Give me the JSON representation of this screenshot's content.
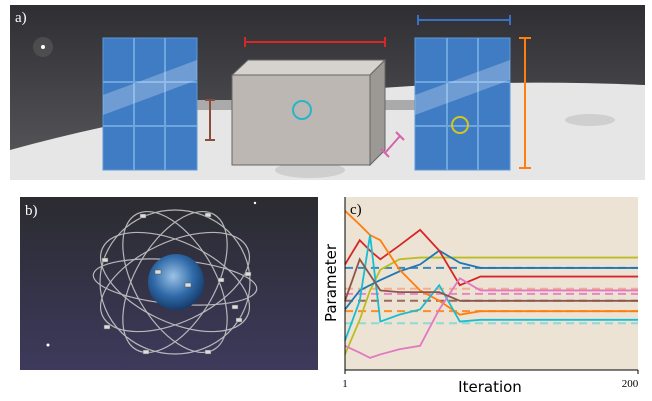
{
  "panel_labels": [
    "a)",
    "b)"
  ],
  "chart_data": {
    "type": "line",
    "panel_label": "c)",
    "xlabel": "Iteration",
    "ylabel": "Parameter",
    "xlim": [
      1,
      200
    ],
    "xticks": [
      1,
      200
    ],
    "ylim": [
      0,
      1
    ],
    "x": [
      1,
      11,
      18,
      25,
      38,
      52,
      65,
      79,
      93,
      200
    ],
    "series": [
      {
        "color": "#bcbd22",
        "values": [
          0.09,
          0.29,
          0.46,
          0.58,
          0.64,
          0.65,
          0.65,
          0.65,
          0.65,
          0.65
        ]
      },
      {
        "color": "#1f77b4",
        "values": [
          0.35,
          0.46,
          0.49,
          0.52,
          0.57,
          0.61,
          0.69,
          0.62,
          0.59,
          0.59
        ]
      },
      {
        "color": "#d62728",
        "values": [
          0.61,
          0.75,
          0.69,
          0.64,
          0.72,
          0.81,
          0.69,
          0.49,
          0.54,
          0.54
        ]
      },
      {
        "color": "#ff7f0e",
        "values": [
          0.92,
          0.84,
          0.78,
          0.75,
          0.58,
          0.46,
          0.4,
          0.32,
          0.34,
          0.34
        ]
      },
      {
        "color": "#17becf",
        "values": [
          0.17,
          0.4,
          0.78,
          0.28,
          0.32,
          0.35,
          0.49,
          0.28,
          0.29,
          0.29
        ]
      },
      {
        "color": "#e377c2",
        "values": [
          0.14,
          0.1,
          0.07,
          0.09,
          0.12,
          0.14,
          0.35,
          0.53,
          0.46,
          0.46
        ]
      },
      {
        "color": "#8c564b",
        "values": [
          0.4,
          0.64,
          0.55,
          0.46,
          0.45,
          0.45,
          0.45,
          0.4,
          0.4,
          0.4
        ]
      }
    ],
    "targets": [
      {
        "color": "#1f77b4",
        "value": 0.59
      },
      {
        "color": "#f4a582",
        "value": 0.47
      },
      {
        "color": "#e377c2",
        "value": 0.44
      },
      {
        "color": "#8c564b",
        "value": 0.4
      },
      {
        "color": "#ff7f0e",
        "value": 0.34
      },
      {
        "color": "#7fd8d8",
        "value": 0.27
      }
    ]
  }
}
